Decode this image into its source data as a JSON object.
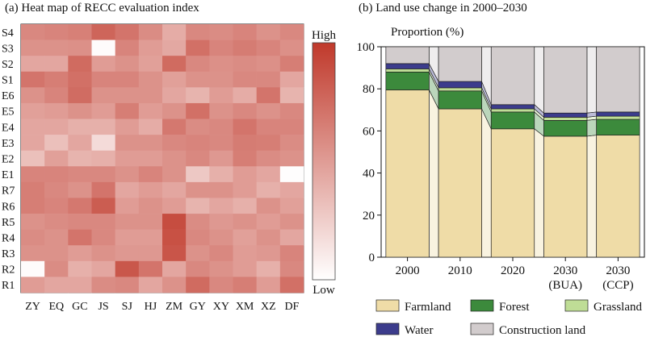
{
  "chart_data": [
    {
      "type": "heatmap",
      "title": "(a) Heat map of RECC evaluation index",
      "rows": [
        "S4",
        "S3",
        "S2",
        "S1",
        "E6",
        "E5",
        "E4",
        "E3",
        "E2",
        "E1",
        "R7",
        "R6",
        "R5",
        "R4",
        "R3",
        "R2",
        "R1"
      ],
      "columns": [
        "ZY",
        "EQ",
        "GC",
        "JS",
        "SJ",
        "HJ",
        "ZM",
        "GY",
        "XY",
        "XM",
        "XZ",
        "DF"
      ],
      "colorbar": {
        "high_label": "High",
        "low_label": "Low",
        "high_color": "#c0392b",
        "low_color": "#ffffff"
      },
      "values": [
        [
          0.6,
          0.62,
          0.64,
          0.78,
          0.7,
          0.58,
          0.42,
          0.6,
          0.58,
          0.62,
          0.55,
          0.6
        ],
        [
          0.55,
          0.55,
          0.56,
          0.02,
          0.62,
          0.5,
          0.44,
          0.72,
          0.62,
          0.66,
          0.62,
          0.56
        ],
        [
          0.45,
          0.45,
          0.75,
          0.5,
          0.55,
          0.48,
          0.75,
          0.6,
          0.56,
          0.58,
          0.56,
          0.65
        ],
        [
          0.7,
          0.65,
          0.72,
          0.62,
          0.62,
          0.55,
          0.48,
          0.55,
          0.55,
          0.6,
          0.6,
          0.45
        ],
        [
          0.55,
          0.62,
          0.74,
          0.55,
          0.55,
          0.55,
          0.45,
          0.38,
          0.5,
          0.42,
          0.7,
          0.38
        ],
        [
          0.48,
          0.5,
          0.55,
          0.5,
          0.65,
          0.5,
          0.55,
          0.72,
          0.55,
          0.6,
          0.55,
          0.6
        ],
        [
          0.45,
          0.45,
          0.4,
          0.4,
          0.5,
          0.42,
          0.68,
          0.58,
          0.6,
          0.7,
          0.62,
          0.62
        ],
        [
          0.45,
          0.32,
          0.45,
          0.18,
          0.55,
          0.55,
          0.6,
          0.62,
          0.6,
          0.66,
          0.65,
          0.58
        ],
        [
          0.32,
          0.48,
          0.38,
          0.4,
          0.5,
          0.5,
          0.55,
          0.6,
          0.52,
          0.65,
          0.58,
          0.55
        ],
        [
          0.62,
          0.62,
          0.6,
          0.6,
          0.55,
          0.62,
          0.55,
          0.28,
          0.4,
          0.5,
          0.45,
          0.01
        ],
        [
          0.65,
          0.6,
          0.55,
          0.7,
          0.45,
          0.5,
          0.45,
          0.55,
          0.55,
          0.5,
          0.4,
          0.45
        ],
        [
          0.65,
          0.62,
          0.68,
          0.82,
          0.5,
          0.55,
          0.5,
          0.38,
          0.45,
          0.4,
          0.55,
          0.48
        ],
        [
          0.55,
          0.58,
          0.6,
          0.6,
          0.55,
          0.55,
          0.9,
          0.58,
          0.52,
          0.55,
          0.5,
          0.55
        ],
        [
          0.58,
          0.55,
          0.7,
          0.6,
          0.5,
          0.5,
          0.88,
          0.6,
          0.55,
          0.48,
          0.55,
          0.45
        ],
        [
          0.55,
          0.55,
          0.5,
          0.55,
          0.52,
          0.52,
          0.86,
          0.55,
          0.6,
          0.5,
          0.52,
          0.62
        ],
        [
          0.02,
          0.58,
          0.4,
          0.45,
          0.85,
          0.7,
          0.45,
          0.6,
          0.55,
          0.5,
          0.4,
          0.6
        ],
        [
          0.5,
          0.45,
          0.45,
          0.58,
          0.6,
          0.45,
          0.55,
          0.75,
          0.6,
          0.65,
          0.5,
          0.72
        ]
      ]
    },
    {
      "type": "bar",
      "stacked": true,
      "title": "(b) Land use change in 2000–2030",
      "ylabel": "Proportion (%)",
      "ylim": [
        0,
        100
      ],
      "yticks": [
        0,
        20,
        40,
        60,
        80,
        100
      ],
      "categories": [
        "2000",
        "2010",
        "2020",
        "2030",
        "2030"
      ],
      "category_sublabels": [
        "",
        "",
        "",
        "(BUA)",
        "(CCP)"
      ],
      "series": [
        {
          "name": "Farmland",
          "color": "#efdca7",
          "values": [
            79.5,
            70.5,
            61,
            57.5,
            58
          ]
        },
        {
          "name": "Forest",
          "color": "#3c8a3c",
          "values": [
            8.5,
            8.5,
            8,
            7.5,
            7.5
          ]
        },
        {
          "name": "Grassland",
          "color": "#bfdd96",
          "values": [
            1.5,
            1.5,
            1.5,
            1.5,
            1.5
          ]
        },
        {
          "name": "Water",
          "color": "#3c3c8c",
          "values": [
            2.5,
            3,
            2,
            2,
            2
          ]
        },
        {
          "name": "Construction land",
          "color": "#d2cccd",
          "values": [
            8,
            16.5,
            27.5,
            31.5,
            31
          ]
        }
      ],
      "legend_position": "bottom"
    }
  ]
}
